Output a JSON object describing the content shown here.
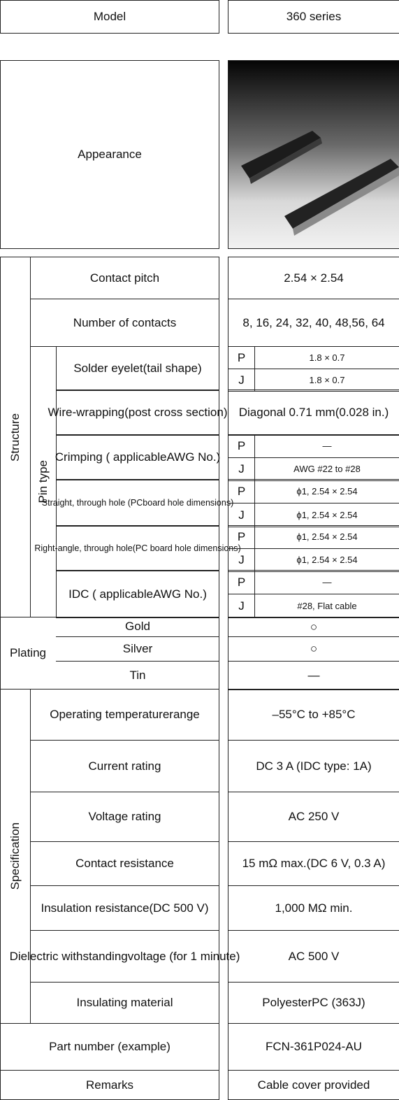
{
  "model": {
    "label": "Model",
    "value": "360 series"
  },
  "appearance": {
    "label": "Appearance"
  },
  "structure": {
    "label": "Structure",
    "pin_type_label": "Pin type",
    "contact_pitch": {
      "label": "Contact pitch",
      "value": "2.54 × 2.54"
    },
    "number_of_contacts": {
      "label": "Number of contacts",
      "value": [
        "8, 16, 24, 32, 40, 48,",
        "56, 64"
      ]
    },
    "solder_eyelet": {
      "label": [
        "Solder eyelet",
        "(tail shape)"
      ],
      "variants": [
        {
          "type": "P",
          "value": "1.8 × 0.7"
        },
        {
          "type": "J",
          "value": "1.8 × 0.7"
        }
      ]
    },
    "wire_wrapping": {
      "label": [
        "Wire-wrapping",
        "(post cross section)"
      ],
      "value": [
        "Diagonal 0.71 mm",
        "(0.028 in.)"
      ]
    },
    "crimping": {
      "label": [
        "Crimping ( applicable",
        "AWG No.)"
      ],
      "variants": [
        {
          "type": "P",
          "value": "—"
        },
        {
          "type": "J",
          "value": "AWG #22 to #28"
        }
      ]
    },
    "straight": {
      "label": [
        "Straight, through hole (PC",
        "board hole dimensions)"
      ],
      "variants": [
        {
          "type": "P",
          "value": "ϕ1, 2.54 × 2.54"
        },
        {
          "type": "J",
          "value": "ϕ1, 2.54 × 2.54"
        }
      ]
    },
    "right_angle": {
      "label": [
        "Right-angle, through hole",
        "(PC board hole dimensions)"
      ],
      "variants": [
        {
          "type": "P",
          "value": "ϕ1, 2.54 × 2.54"
        },
        {
          "type": "J",
          "value": "ϕ1, 2.54 × 2.54"
        }
      ]
    },
    "idc": {
      "label": [
        "IDC ( applicable",
        "AWG No.)"
      ],
      "variants": [
        {
          "type": "P",
          "value": "—"
        },
        {
          "type": "J",
          "value": "#28, Flat cable"
        }
      ]
    }
  },
  "plating": {
    "label": "Plating",
    "rows": [
      {
        "label": "Gold",
        "value": "○"
      },
      {
        "label": "Silver",
        "value": "○"
      },
      {
        "label": "Tin",
        "value": "—"
      }
    ]
  },
  "specification": {
    "label": "Specification",
    "rows": [
      {
        "label": [
          "Operating temperature",
          "range"
        ],
        "value": "–55°C to +85°C"
      },
      {
        "label": "Current rating",
        "value": "DC 3 A (IDC type: 1A)"
      },
      {
        "label": "Voltage rating",
        "value": "AC 250 V"
      },
      {
        "label": "Contact resistance",
        "value": [
          "15 mΩ max.",
          "(DC 6 V, 0.3 A)"
        ]
      },
      {
        "label": [
          "Insulation resistance",
          "(DC 500 V)"
        ],
        "value": "1,000 MΩ min."
      },
      {
        "label": [
          "Dielectric withstanding",
          "voltage (for 1 minute)"
        ],
        "value": "AC 500 V"
      },
      {
        "label": "Insulating material",
        "value": [
          "Polyester",
          "PC (363J)"
        ]
      }
    ]
  },
  "part_number": {
    "label": "Part number (example)",
    "value": "FCN-361P024-AU"
  },
  "remarks": {
    "label": "Remarks",
    "value": "Cable cover provided"
  }
}
